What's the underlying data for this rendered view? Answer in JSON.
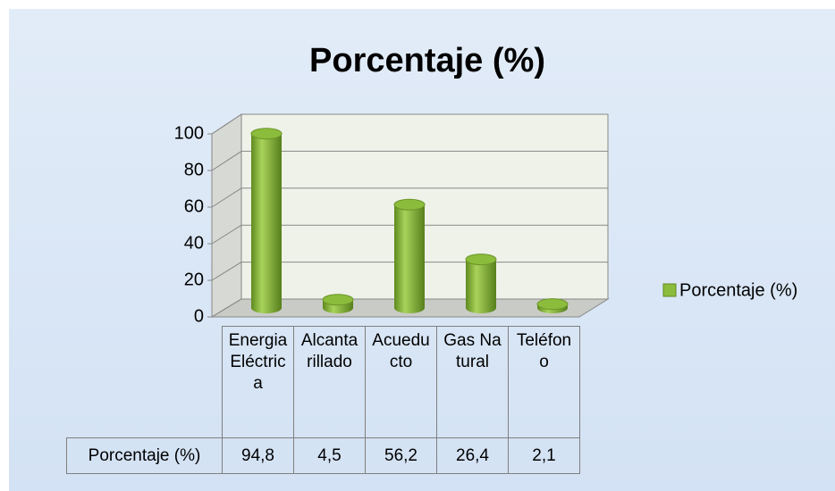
{
  "chart_data": {
    "type": "bar3d",
    "title": "Porcentaje (%)",
    "categories": [
      "Energia Eléctrica",
      "Alcantarillado",
      "Acueducto",
      "Gas Natural",
      "Teléfono"
    ],
    "series": [
      {
        "name": "Porcentaje (%)",
        "color": "#8cbc3c",
        "values": [
          94.8,
          4.5,
          56.2,
          26.4,
          2.1
        ],
        "value_labels": [
          "94,8",
          "4,5",
          "56,2",
          "26,4",
          "2,1"
        ]
      }
    ],
    "ylim": [
      0,
      100
    ],
    "yticks": [
      0,
      20,
      40,
      60,
      80,
      100
    ],
    "grid": true,
    "legend": "right"
  }
}
